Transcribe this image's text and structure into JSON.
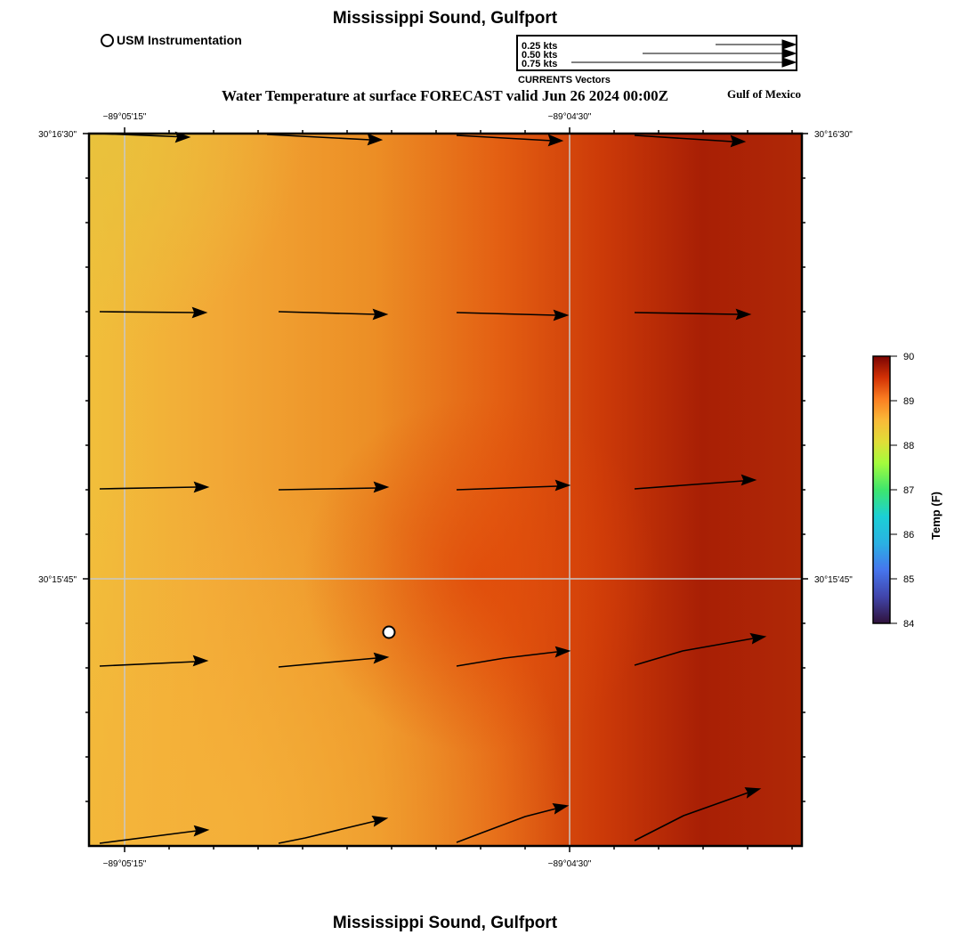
{
  "title": "Mississippi Sound, Gulfport",
  "subtitle": "Water Temperature at surface FORECAST valid Jun 26 2024 00:00Z",
  "region_label": "Gulf of Mexico",
  "station_legend": {
    "label": "USM Instrumentation"
  },
  "vector_legend": {
    "caption": "CURRENTS Vectors",
    "items": [
      {
        "label": "0.25 kts",
        "speed": 0.25
      },
      {
        "label": "0.50 kts",
        "speed": 0.5
      },
      {
        "label": "0.75 kts",
        "speed": 0.75
      }
    ]
  },
  "axes": {
    "lon_labels": [
      "−89°05'15\"",
      "−89°04'30\""
    ],
    "lat_labels": [
      "30°16'30\"",
      "30°15'45\""
    ]
  },
  "colorbar": {
    "title": "Temp (F)",
    "min": 84,
    "max": 90,
    "ticks": [
      "90",
      "89",
      "88",
      "87",
      "86",
      "85",
      "84"
    ]
  },
  "colors": {
    "light": "#f1b93a",
    "mid": "#ed8f24",
    "orange_red": "#dd4a0a",
    "dark": "#a51f05"
  }
}
